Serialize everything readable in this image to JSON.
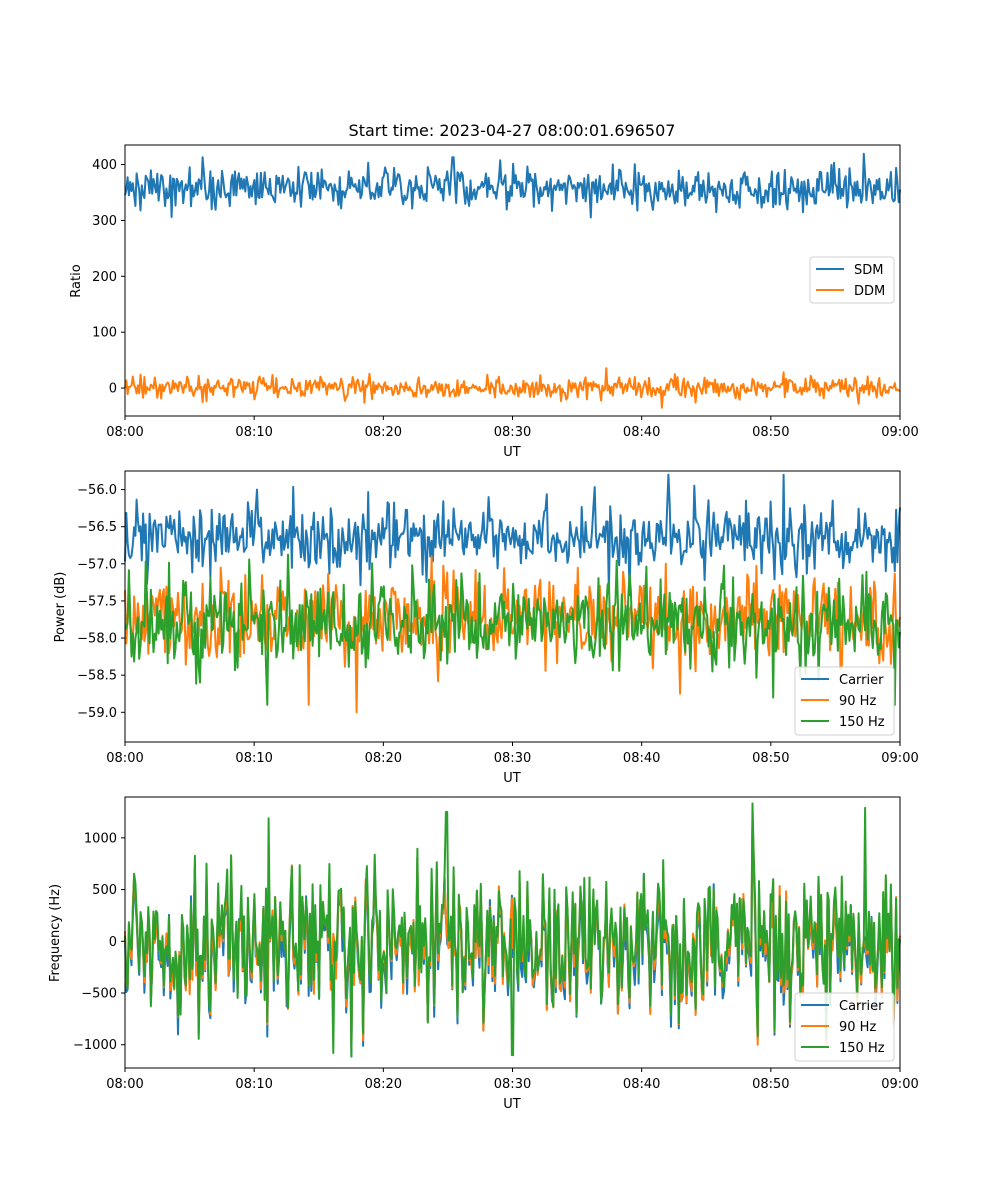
{
  "chart_data": [
    {
      "type": "line",
      "title": "Start time: 2023-04-27 08:00:01.696507",
      "xlabel": "UT",
      "ylabel": "Ratio",
      "xlim": [
        "08:00",
        "09:00"
      ],
      "xticks": [
        "08:00",
        "08:10",
        "08:20",
        "08:30",
        "08:40",
        "08:50",
        "09:00"
      ],
      "ylim": [
        -50,
        435
      ],
      "yticks": [
        "0",
        "100",
        "200",
        "300",
        "400"
      ],
      "yticks_values": [
        0,
        100,
        200,
        300,
        400
      ],
      "legend_position": "center-right",
      "grid": false,
      "series": [
        {
          "name": "SDM",
          "color": "#1f77b4",
          "mean": 358,
          "amplitude": 20,
          "spikes": [
            [
              25.4,
              413
            ],
            [
              57.4,
              336
            ],
            [
              20.8,
              394
            ]
          ]
        },
        {
          "name": "DDM",
          "color": "#ff7f0e",
          "mean": 0,
          "amplitude": 11,
          "spikes": [
            [
              42.6,
              25
            ],
            [
              56.8,
              -28
            ],
            [
              1.5,
              20
            ]
          ]
        }
      ]
    },
    {
      "type": "line",
      "title": "",
      "xlabel": "UT",
      "ylabel": "Power (dB)",
      "xlim": [
        "08:00",
        "09:00"
      ],
      "xticks": [
        "08:00",
        "08:10",
        "08:20",
        "08:30",
        "08:40",
        "08:50",
        "09:00"
      ],
      "ylim": [
        -59.4,
        -55.75
      ],
      "yticks": [
        "−59.0",
        "−58.5",
        "−58.0",
        "−57.5",
        "−57.0",
        "−56.5",
        "−56.0"
      ],
      "yticks_values": [
        -59.0,
        -58.5,
        -58.0,
        -57.5,
        -57.0,
        -56.5,
        -56.0
      ],
      "legend_position": "lower-right",
      "grid": false,
      "series": [
        {
          "name": "Carrier",
          "color": "#1f77b4",
          "mean": -56.65,
          "amplitude": 0.25,
          "spikes": [
            [
              51.0,
              -55.8
            ],
            [
              44.1,
              -55.95
            ],
            [
              10.2,
              -56.0
            ]
          ]
        },
        {
          "name": "90 Hz",
          "color": "#ff7f0e",
          "mean": -57.75,
          "amplitude": 0.32,
          "spikes": [
            [
              17.9,
              -59.0
            ],
            [
              14.2,
              -58.9
            ],
            [
              43.0,
              -58.75
            ]
          ]
        },
        {
          "name": "150 Hz",
          "color": "#2ca02c",
          "mean": -57.8,
          "amplitude": 0.32,
          "spikes": [
            [
              11.0,
              -58.9
            ],
            [
              50.2,
              -58.8
            ],
            [
              59.6,
              -58.9
            ]
          ]
        }
      ]
    },
    {
      "type": "line",
      "title": "",
      "xlabel": "UT",
      "ylabel": "Frequency (Hz)",
      "xlim": [
        "08:00",
        "09:00"
      ],
      "xticks": [
        "08:00",
        "08:10",
        "08:20",
        "08:30",
        "08:40",
        "08:50",
        "09:00"
      ],
      "ylim": [
        -1225,
        1395
      ],
      "yticks": [
        "−1000",
        "−500",
        "0",
        "500",
        "1000"
      ],
      "yticks_values": [
        -1000,
        -500,
        0,
        500,
        1000
      ],
      "legend_position": "lower-right",
      "grid": false,
      "series": [
        {
          "name": "Carrier",
          "color": "#1f77b4",
          "mean": -60,
          "amplitude": 380
        },
        {
          "name": "90 Hz",
          "color": "#ff7f0e",
          "mean": -20,
          "amplitude": 380
        },
        {
          "name": "150 Hz",
          "color": "#2ca02c",
          "mean": 30,
          "amplitude": 390,
          "spikes": [
            [
              24.9,
              1250
            ],
            [
              57.3,
              1290
            ],
            [
              11.1,
              1190
            ],
            [
              30.0,
              -1100
            ],
            [
              16.1,
              -1080
            ]
          ]
        }
      ]
    }
  ]
}
